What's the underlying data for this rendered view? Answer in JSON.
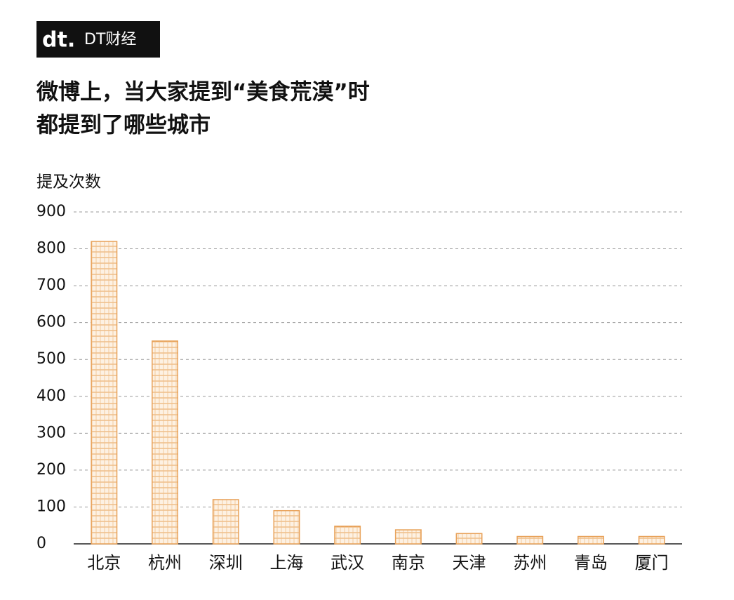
{
  "brand": "DT财经",
  "chart_data": {
    "type": "bar",
    "title": [
      "微博上，当大家提到“美食荒漠”时",
      "都提到了哪些城市"
    ],
    "y_label": "提及次数",
    "categories": [
      "北京",
      "杭州",
      "深圳",
      "上海",
      "武汉",
      "南京",
      "天津",
      "苏州",
      "青岛",
      "厦门"
    ],
    "values": [
      820,
      550,
      120,
      90,
      48,
      38,
      28,
      20,
      20,
      20
    ],
    "color": "#e8a25a",
    "ylim": [
      0,
      900
    ],
    "yticks": [
      0,
      100,
      200,
      300,
      400,
      500,
      600,
      700,
      800,
      900
    ],
    "grid": true
  }
}
